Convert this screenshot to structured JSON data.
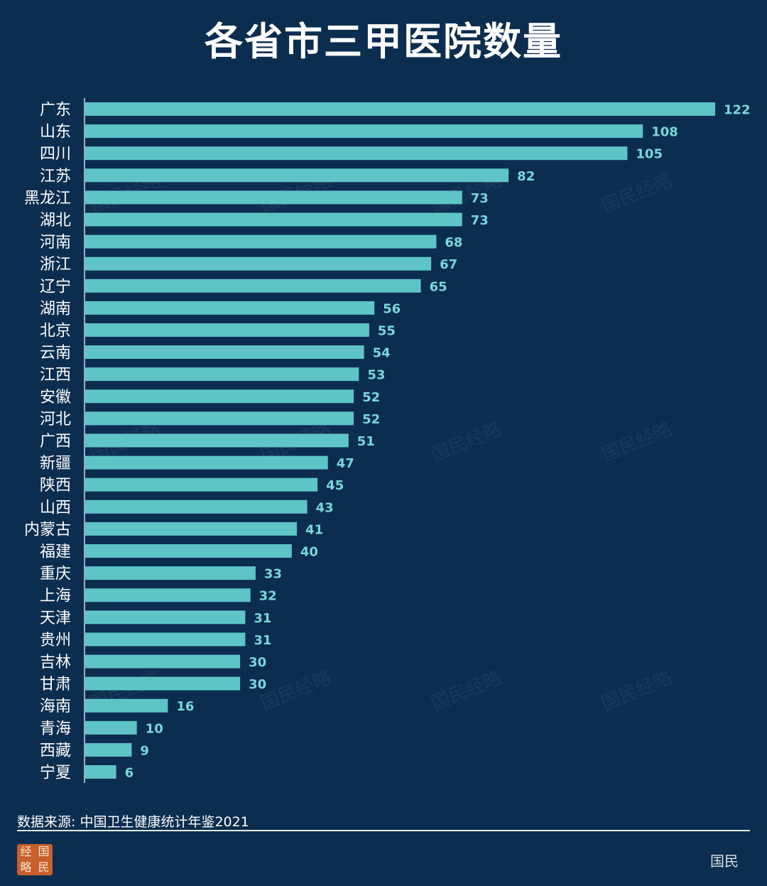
{
  "chart_data": {
    "type": "bar",
    "orientation": "horizontal",
    "title": "各省市三甲医院数量",
    "categories": [
      "广东",
      "山东",
      "四川",
      "江苏",
      "黑龙江",
      "湖北",
      "河南",
      "浙江",
      "辽宁",
      "湖南",
      "北京",
      "云南",
      "江西",
      "安徽",
      "河北",
      "广西",
      "新疆",
      "陕西",
      "山西",
      "内蒙古",
      "福建",
      "重庆",
      "上海",
      "天津",
      "贵州",
      "吉林",
      "甘肃",
      "海南",
      "青海",
      "西藏",
      "宁夏"
    ],
    "values": [
      122,
      108,
      105,
      82,
      73,
      73,
      68,
      67,
      65,
      56,
      55,
      54,
      53,
      52,
      52,
      51,
      47,
      45,
      43,
      41,
      40,
      33,
      32,
      31,
      31,
      30,
      30,
      16,
      10,
      9,
      6
    ],
    "xlim": [
      0,
      122
    ],
    "grid": false,
    "legend": "none",
    "bar_color": "#5ec4c8",
    "value_label_color": "#78d8dc",
    "background_color": "#0b2d4f"
  },
  "footer": {
    "source": "数据来源: 中国卫生健康统计年鉴2021",
    "brand": "国民"
  },
  "watermark": {
    "text": "国民经略"
  },
  "logo": {
    "chars": [
      "国",
      "经",
      "民",
      "略"
    ]
  }
}
